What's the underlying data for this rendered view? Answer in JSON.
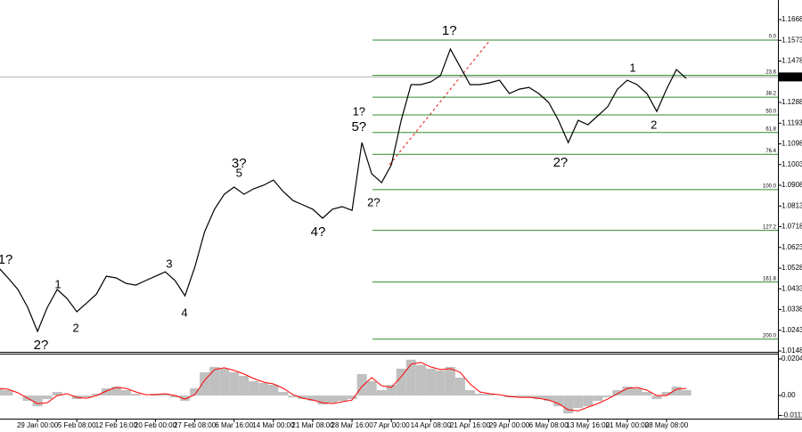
{
  "chart_data": [
    {
      "type": "line",
      "categories": [
        null,
        null,
        null,
        null,
        "29 Jan 00:00",
        null,
        null,
        null,
        "5 Feb 08:00",
        null,
        null,
        null,
        "12 Feb 16:00",
        null,
        null,
        null,
        "20 Feb 00:00",
        null,
        null,
        null,
        "27 Feb 08:00",
        null,
        null,
        null,
        "6 Mar 16:00",
        null,
        null,
        null,
        "14 Mar 00:00",
        null,
        null,
        null,
        "21 Mar 08:00",
        null,
        null,
        null,
        "28 Mar 16:00",
        null,
        null,
        null,
        "7 Apr 00:00",
        null,
        null,
        null,
        "14 Apr 08:00",
        null,
        null,
        null,
        "21 Apr 16:00",
        null,
        null,
        null,
        "29 Apr 00:00",
        null,
        null,
        null,
        "6 May 08:00",
        null,
        null,
        null,
        "13 May 16:00",
        null,
        null,
        null,
        "21 May 00:00",
        null,
        null,
        null,
        "28 May 08:00",
        null,
        null
      ],
      "values": [
        1.0532,
        1.0483,
        1.043,
        1.0348,
        1.0238,
        1.0348,
        1.043,
        1.0389,
        1.0328,
        1.0368,
        1.0409,
        1.0491,
        1.0483,
        1.0458,
        1.045,
        1.0471,
        1.0491,
        1.0511,
        1.0471,
        1.0401,
        1.0532,
        1.0695,
        1.0798,
        1.0867,
        1.09,
        1.0867,
        1.0892,
        1.0908,
        1.0932,
        1.0879,
        1.0838,
        1.0818,
        1.0798,
        1.0757,
        1.0798,
        1.081,
        1.0793,
        1.1104,
        1.0961,
        1.092,
        1.1002,
        1.1206,
        1.137,
        1.137,
        1.1382,
        1.1411,
        1.1533,
        1.1451,
        1.137,
        1.137,
        1.1378,
        1.139,
        1.1329,
        1.1349,
        1.1357,
        1.1329,
        1.1288,
        1.1206,
        1.1104,
        1.1206,
        1.1186,
        1.1227,
        1.1268,
        1.1349,
        1.139,
        1.137,
        1.1329,
        1.1247,
        1.1349,
        1.1439,
        1.1398
      ],
      "color": "#000000",
      "ylim": [
        1.0144,
        1.1758
      ],
      "yticks": [
        1.1668,
        1.1573,
        1.1478,
        1.1288,
        1.1193,
        1.1098,
        1.1003,
        1.0908,
        1.0813,
        1.0718,
        1.0623,
        1.0528,
        1.0433,
        1.0338,
        1.0243,
        1.0148
      ],
      "last_price": 1.1405,
      "fibonacci": {
        "color": "#2e8b2e",
        "levels": [
          "0.0",
          "23.6",
          "38.2",
          "50.0",
          "61.8",
          "76.4",
          "100.0",
          "127.2",
          "161.8",
          "200.0"
        ],
        "prices": [
          1.1574,
          1.1412,
          1.1312,
          1.1231,
          1.115,
          1.105,
          1.0888,
          1.0701,
          1.0464,
          1.0202
        ]
      },
      "annotations": [
        {
          "text": "1?",
          "color": "#1a1acc",
          "at": 0.73,
          "price": 1.0565
        },
        {
          "text": "2?",
          "color": "#1a1acc",
          "at": 4.35,
          "price": 1.0172
        },
        {
          "text": "1",
          "color": "#e01010",
          "at": 6.07,
          "price": 1.045
        },
        {
          "text": "2",
          "color": "#e01010",
          "at": 7.9,
          "price": 1.025
        },
        {
          "text": "3",
          "color": "#e01010",
          "at": 17.4,
          "price": 1.0544
        },
        {
          "text": "4",
          "color": "#e01010",
          "at": 18.95,
          "price": 1.0319
        },
        {
          "text": "3?",
          "color": "#1a1acc",
          "at": 24.5,
          "price": 1.1006
        },
        {
          "text": "5",
          "color": "#e01010",
          "at": 24.5,
          "price": 1.0961
        },
        {
          "text": "4?",
          "color": "#1a1acc",
          "at": 32.55,
          "price": 1.0691
        },
        {
          "text": "5?",
          "color": "#1a1acc",
          "at": 36.7,
          "price": 1.1173
        },
        {
          "text": "1?",
          "color": "#e01010",
          "at": 36.7,
          "price": 1.1243
        },
        {
          "text": "2?",
          "color": "#e01010",
          "at": 38.2,
          "price": 1.0826
        },
        {
          "text": "1?",
          "color": "#1a1acc",
          "at": 45.9,
          "price": 1.1615
        },
        {
          "text": "2?",
          "color": "#1a1acc",
          "at": 57.2,
          "price": 1.101
        },
        {
          "text": "1",
          "color": "#e01010",
          "at": 64.55,
          "price": 1.1443
        },
        {
          "text": "2",
          "color": "#e01010",
          "at": 66.7,
          "price": 1.1182
        }
      ]
    },
    {
      "type": "bar",
      "values": [
        0.004,
        0.003,
        0,
        -0.003,
        -0.006,
        -0.002,
        0.002,
        0,
        -0.002,
        -0.001,
        0.001,
        0.004,
        0.005,
        0.003,
        0.001,
        0,
        0.001,
        0.001,
        -0.001,
        -0.003,
        0.004,
        0.013,
        0.016,
        0.015,
        0.013,
        0.011,
        0.008,
        0.007,
        0.006,
        0.002,
        -0.001,
        -0.002,
        -0.003,
        -0.005,
        -0.004,
        -0.003,
        -0.002,
        0.012,
        0.008,
        0.003,
        0.006,
        0.015,
        0.02,
        0.017,
        0.015,
        0.014,
        0.016,
        0.01,
        0.003,
        0.001,
        0.001,
        0,
        -0.001,
        -0.001,
        -0.001,
        -0.002,
        -0.003,
        -0.006,
        -0.01,
        -0.007,
        -0.006,
        -0.003,
        -0.001,
        0.003,
        0.005,
        0.004,
        0.002,
        -0.002,
        0.002,
        0.005,
        0.003
      ],
      "color": "#c0c0c0",
      "signal": {
        "color": "#ff0000",
        "values": [
          0.004,
          0.0035,
          0.0015,
          -0.0015,
          -0.0045,
          -0.004,
          0,
          0.001,
          -0.001,
          -0.0015,
          0,
          0.0025,
          0.0045,
          0.004,
          0.002,
          0.0005,
          0.0005,
          0.001,
          0,
          -0.002,
          0.0005,
          0.0085,
          0.0145,
          0.0155,
          0.014,
          0.012,
          0.0095,
          0.0075,
          0.0065,
          0.004,
          0.0005,
          -0.0015,
          -0.0025,
          -0.004,
          -0.0045,
          -0.0035,
          -0.0025,
          0.005,
          0.01,
          0.0055,
          0.0045,
          0.0105,
          0.0175,
          0.0185,
          0.016,
          0.0145,
          0.015,
          0.013,
          0.0065,
          0.002,
          0.001,
          0.0005,
          -0.0005,
          -0.001,
          -0.001,
          -0.0015,
          -0.0025,
          -0.0045,
          -0.008,
          -0.0085,
          -0.0065,
          -0.0045,
          -0.002,
          0.001,
          0.004,
          0.0045,
          0.003,
          0,
          0,
          0.0035,
          0.004
        ]
      },
      "ylim": [
        -0.0129,
        0.0234
      ],
      "yticks": [
        0.02042,
        {
          "value": 0,
          "label": "0.00"
        },
        -0.0111
      ]
    }
  ]
}
